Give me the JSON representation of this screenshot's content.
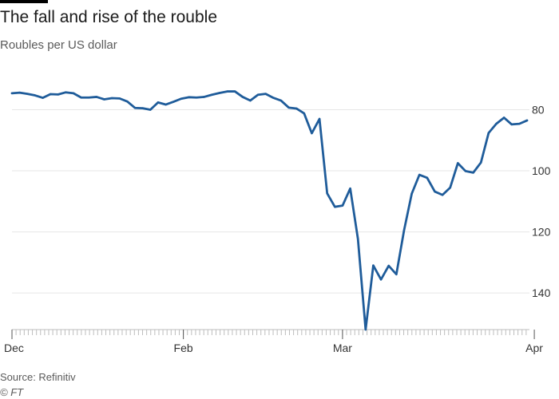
{
  "title": "The fall and rise of the rouble",
  "subtitle": "Roubles per US dollar",
  "source": "Source: Refinitiv",
  "copyright": "© FT",
  "colors": {
    "line": "#1f5c9a",
    "grid": "#e6e6e6",
    "tick": "#bdbdbd",
    "text": "#333333",
    "top_rule": "#000000"
  },
  "chart_data": {
    "type": "line",
    "title": "The fall and rise of the rouble",
    "ylabel": "Roubles per US dollar",
    "xlabel": "",
    "y_axis_inverted": true,
    "y_axis_position": "right",
    "ylim": [
      71.5,
      152
    ],
    "y_ticks": [
      80,
      100,
      120,
      140
    ],
    "x_tick_labels": [
      "Dec",
      "Feb",
      "Mar",
      "Apr"
    ],
    "x_tick_indices": [
      0,
      42,
      81,
      128
    ],
    "grid": "horizontal",
    "legend": "none",
    "series": [
      {
        "values": [
          74.6,
          74.4,
          74.8,
          75.3,
          76.1,
          74.9,
          75.0,
          74.3,
          74.6,
          76.0,
          76.0,
          75.8,
          76.6,
          76.2,
          76.3,
          77.3,
          79.4,
          79.5,
          80.0,
          77.6,
          78.3,
          77.4,
          76.4,
          75.9,
          76.0,
          75.8,
          75.1,
          74.5,
          74.0,
          74.0,
          75.8,
          77.0,
          75.1,
          74.8,
          76.1,
          77.0,
          79.3,
          79.6,
          81.2,
          87.7,
          83.0,
          107.4,
          111.8,
          111.4,
          105.8,
          122.3,
          152.0,
          131.0,
          135.6,
          131.1,
          133.9,
          119.5,
          107.5,
          101.3,
          102.3,
          106.8,
          107.9,
          105.5,
          97.5,
          100.1,
          100.6,
          97.3,
          87.6,
          84.6,
          82.6,
          84.8,
          84.6,
          83.5
        ]
      }
    ]
  }
}
